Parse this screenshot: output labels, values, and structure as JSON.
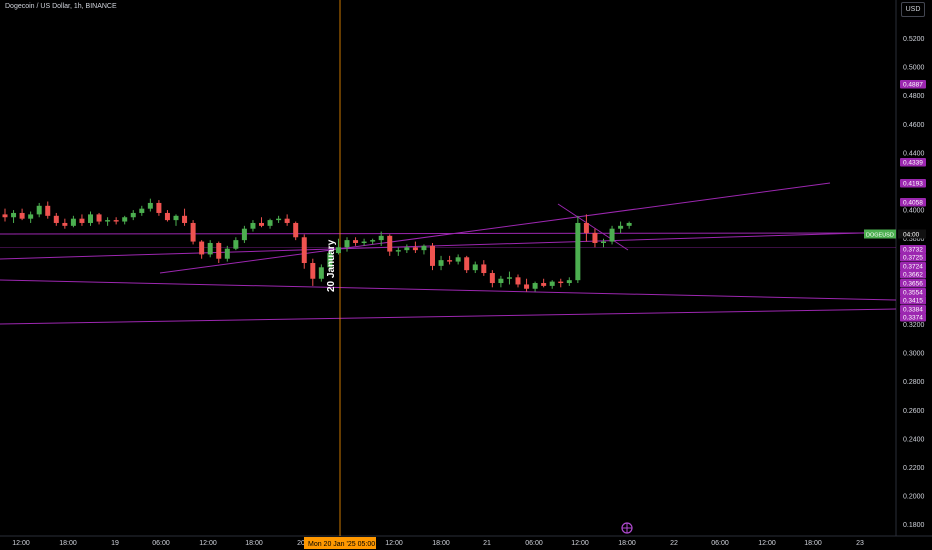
{
  "header": {
    "symbol_title": "Dogecoin / US Dollar, 1h, BINANCE",
    "currency_label": "USD"
  },
  "colors": {
    "background": "#000000",
    "up": "#26a69a",
    "up_bright": "#4caf50",
    "down": "#ef5350",
    "trendline": "#9c27b0",
    "cursor": "#ff9800",
    "text": "#d1d4dc"
  },
  "crosshair": {
    "vertical_label": "20 January",
    "time_label": "Mon 20 Jan '25   05:00"
  },
  "current_price": {
    "symbol": "DOGEUSD",
    "countdown": "04:00"
  },
  "chart_data": {
    "type": "candlestick",
    "y_axis": {
      "range": [
        0.17,
        0.54
      ],
      "ticks": [
        "0.5200",
        "0.5000",
        "0.4800",
        "0.4600",
        "0.4400",
        "0.4200",
        "0.4000",
        "0.3800",
        "0.3600",
        "0.3400",
        "0.3200",
        "0.3000",
        "0.2800",
        "0.2600",
        "0.2400",
        "0.2200",
        "0.2000",
        "0.1800"
      ]
    },
    "x_axis": {
      "range": [
        "19 Jan '25 08:00",
        "23 Jan '25 02:00"
      ],
      "ticks": [
        "12:00",
        "18:00",
        "19",
        "06:00",
        "12:00",
        "18:00",
        "20",
        "06:00",
        "12:00",
        "18:00",
        "21",
        "06:00",
        "12:00",
        "18:00",
        "22",
        "06:00",
        "12:00",
        "18:00",
        "23"
      ]
    },
    "price_labels": [
      "0.4887",
      "0.4339",
      "0.4193",
      "0.4058",
      "0.3732",
      "0.3725",
      "0.3724",
      "0.3662",
      "0.3656",
      "0.3554",
      "0.3415",
      "0.3384",
      "0.3374"
    ],
    "candles": [
      {
        "o": 0.397,
        "h": 0.401,
        "l": 0.392,
        "c": 0.395
      },
      {
        "o": 0.395,
        "h": 0.4,
        "l": 0.391,
        "c": 0.398
      },
      {
        "o": 0.398,
        "h": 0.401,
        "l": 0.393,
        "c": 0.394
      },
      {
        "o": 0.394,
        "h": 0.399,
        "l": 0.391,
        "c": 0.397
      },
      {
        "o": 0.397,
        "h": 0.405,
        "l": 0.395,
        "c": 0.403
      },
      {
        "o": 0.403,
        "h": 0.406,
        "l": 0.394,
        "c": 0.396
      },
      {
        "o": 0.396,
        "h": 0.398,
        "l": 0.389,
        "c": 0.391
      },
      {
        "o": 0.391,
        "h": 0.394,
        "l": 0.387,
        "c": 0.389
      },
      {
        "o": 0.389,
        "h": 0.396,
        "l": 0.388,
        "c": 0.394
      },
      {
        "o": 0.394,
        "h": 0.397,
        "l": 0.389,
        "c": 0.391
      },
      {
        "o": 0.391,
        "h": 0.399,
        "l": 0.389,
        "c": 0.397
      },
      {
        "o": 0.397,
        "h": 0.398,
        "l": 0.39,
        "c": 0.392
      },
      {
        "o": 0.392,
        "h": 0.395,
        "l": 0.389,
        "c": 0.393
      },
      {
        "o": 0.393,
        "h": 0.395,
        "l": 0.39,
        "c": 0.392
      },
      {
        "o": 0.392,
        "h": 0.396,
        "l": 0.39,
        "c": 0.395
      },
      {
        "o": 0.395,
        "h": 0.4,
        "l": 0.393,
        "c": 0.398
      },
      {
        "o": 0.398,
        "h": 0.403,
        "l": 0.396,
        "c": 0.401
      },
      {
        "o": 0.401,
        "h": 0.408,
        "l": 0.399,
        "c": 0.405
      },
      {
        "o": 0.405,
        "h": 0.407,
        "l": 0.396,
        "c": 0.398
      },
      {
        "o": 0.398,
        "h": 0.4,
        "l": 0.392,
        "c": 0.393
      },
      {
        "o": 0.393,
        "h": 0.397,
        "l": 0.389,
        "c": 0.396
      },
      {
        "o": 0.396,
        "h": 0.401,
        "l": 0.389,
        "c": 0.391
      },
      {
        "o": 0.391,
        "h": 0.393,
        "l": 0.376,
        "c": 0.378
      },
      {
        "o": 0.378,
        "h": 0.379,
        "l": 0.366,
        "c": 0.369
      },
      {
        "o": 0.369,
        "h": 0.379,
        "l": 0.367,
        "c": 0.377
      },
      {
        "o": 0.377,
        "h": 0.378,
        "l": 0.363,
        "c": 0.366
      },
      {
        "o": 0.366,
        "h": 0.375,
        "l": 0.364,
        "c": 0.373
      },
      {
        "o": 0.373,
        "h": 0.381,
        "l": 0.372,
        "c": 0.379
      },
      {
        "o": 0.379,
        "h": 0.389,
        "l": 0.377,
        "c": 0.387
      },
      {
        "o": 0.387,
        "h": 0.393,
        "l": 0.385,
        "c": 0.391
      },
      {
        "o": 0.391,
        "h": 0.395,
        "l": 0.388,
        "c": 0.389
      },
      {
        "o": 0.389,
        "h": 0.394,
        "l": 0.387,
        "c": 0.393
      },
      {
        "o": 0.393,
        "h": 0.396,
        "l": 0.391,
        "c": 0.394
      },
      {
        "o": 0.394,
        "h": 0.397,
        "l": 0.389,
        "c": 0.391
      },
      {
        "o": 0.391,
        "h": 0.392,
        "l": 0.379,
        "c": 0.381
      },
      {
        "o": 0.381,
        "h": 0.383,
        "l": 0.359,
        "c": 0.363
      },
      {
        "o": 0.363,
        "h": 0.366,
        "l": 0.347,
        "c": 0.352
      },
      {
        "o": 0.352,
        "h": 0.362,
        "l": 0.35,
        "c": 0.36
      },
      {
        "o": 0.36,
        "h": 0.372,
        "l": 0.358,
        "c": 0.37
      },
      {
        "o": 0.37,
        "h": 0.38,
        "l": 0.369,
        "c": 0.374
      },
      {
        "o": 0.374,
        "h": 0.381,
        "l": 0.371,
        "c": 0.379
      },
      {
        "o": 0.379,
        "h": 0.381,
        "l": 0.375,
        "c": 0.377
      },
      {
        "o": 0.377,
        "h": 0.38,
        "l": 0.375,
        "c": 0.378
      },
      {
        "o": 0.378,
        "h": 0.38,
        "l": 0.376,
        "c": 0.379
      },
      {
        "o": 0.379,
        "h": 0.385,
        "l": 0.375,
        "c": 0.382
      },
      {
        "o": 0.382,
        "h": 0.383,
        "l": 0.368,
        "c": 0.371
      },
      {
        "o": 0.371,
        "h": 0.374,
        "l": 0.368,
        "c": 0.372
      },
      {
        "o": 0.372,
        "h": 0.376,
        "l": 0.37,
        "c": 0.374
      },
      {
        "o": 0.374,
        "h": 0.378,
        "l": 0.37,
        "c": 0.372
      },
      {
        "o": 0.372,
        "h": 0.376,
        "l": 0.369,
        "c": 0.375
      },
      {
        "o": 0.375,
        "h": 0.377,
        "l": 0.358,
        "c": 0.361
      },
      {
        "o": 0.361,
        "h": 0.368,
        "l": 0.358,
        "c": 0.365
      },
      {
        "o": 0.365,
        "h": 0.368,
        "l": 0.362,
        "c": 0.364
      },
      {
        "o": 0.364,
        "h": 0.369,
        "l": 0.362,
        "c": 0.367
      },
      {
        "o": 0.367,
        "h": 0.368,
        "l": 0.356,
        "c": 0.358
      },
      {
        "o": 0.358,
        "h": 0.364,
        "l": 0.356,
        "c": 0.362
      },
      {
        "o": 0.362,
        "h": 0.365,
        "l": 0.354,
        "c": 0.356
      },
      {
        "o": 0.356,
        "h": 0.358,
        "l": 0.346,
        "c": 0.349
      },
      {
        "o": 0.349,
        "h": 0.354,
        "l": 0.346,
        "c": 0.352
      },
      {
        "o": 0.352,
        "h": 0.357,
        "l": 0.348,
        "c": 0.353
      },
      {
        "o": 0.353,
        "h": 0.355,
        "l": 0.346,
        "c": 0.348
      },
      {
        "o": 0.348,
        "h": 0.352,
        "l": 0.343,
        "c": 0.345
      },
      {
        "o": 0.345,
        "h": 0.35,
        "l": 0.343,
        "c": 0.349
      },
      {
        "o": 0.349,
        "h": 0.352,
        "l": 0.346,
        "c": 0.347
      },
      {
        "o": 0.347,
        "h": 0.351,
        "l": 0.345,
        "c": 0.35
      },
      {
        "o": 0.35,
        "h": 0.352,
        "l": 0.346,
        "c": 0.349
      },
      {
        "o": 0.349,
        "h": 0.353,
        "l": 0.347,
        "c": 0.351
      },
      {
        "o": 0.351,
        "h": 0.396,
        "l": 0.349,
        "c": 0.391
      },
      {
        "o": 0.391,
        "h": 0.397,
        "l": 0.378,
        "c": 0.384
      },
      {
        "o": 0.384,
        "h": 0.387,
        "l": 0.374,
        "c": 0.377
      },
      {
        "o": 0.377,
        "h": 0.38,
        "l": 0.374,
        "c": 0.378
      },
      {
        "o": 0.378,
        "h": 0.389,
        "l": 0.376,
        "c": 0.387
      },
      {
        "o": 0.387,
        "h": 0.392,
        "l": 0.384,
        "c": 0.389
      },
      {
        "o": 0.389,
        "h": 0.392,
        "l": 0.387,
        "c": 0.391
      }
    ],
    "horizontal_lines": [
      0.4887,
      0.4339,
      0.4193,
      0.4058
    ]
  }
}
